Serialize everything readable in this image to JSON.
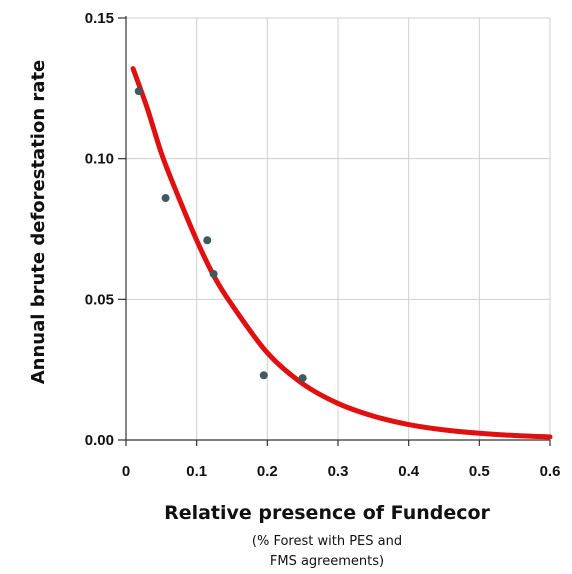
{
  "chart_data": {
    "type": "scatter",
    "xlabel": "Relative presence of Fundecor",
    "xlabel_sub": [
      "(% Forest with PES and",
      "FMS agreements)"
    ],
    "ylabel": "Annual brute deforestation rate",
    "xlim": [
      0,
      0.6
    ],
    "ylim": [
      0,
      0.15
    ],
    "x_ticks": [
      0,
      0.1,
      0.2,
      0.3,
      0.4,
      0.5,
      0.6
    ],
    "x_tick_labels": [
      "0",
      "0.1",
      "0.2",
      "0.3",
      "0.4",
      "0.5",
      "0.6"
    ],
    "y_ticks": [
      0,
      0.05,
      0.1,
      0.15
    ],
    "y_tick_labels": [
      "0.00",
      "0.05",
      "0.10",
      "0.15"
    ],
    "grid": true,
    "series": [
      {
        "kind": "points",
        "color": "#3f5a5f",
        "x": [
          0.018,
          0.056,
          0.115,
          0.124,
          0.195,
          0.25
        ],
        "y": [
          0.124,
          0.086,
          0.071,
          0.059,
          0.023,
          0.022
        ]
      },
      {
        "kind": "fitted-curve",
        "color": "#e01010",
        "x": [
          0.01,
          0.03,
          0.05,
          0.07,
          0.1,
          0.125,
          0.15,
          0.2,
          0.25,
          0.3,
          0.35,
          0.4,
          0.45,
          0.5,
          0.55,
          0.6
        ],
        "y": [
          0.132,
          0.118,
          0.102,
          0.089,
          0.071,
          0.058,
          0.048,
          0.031,
          0.02,
          0.013,
          0.0085,
          0.0055,
          0.0036,
          0.0024,
          0.0016,
          0.0011
        ]
      }
    ]
  }
}
